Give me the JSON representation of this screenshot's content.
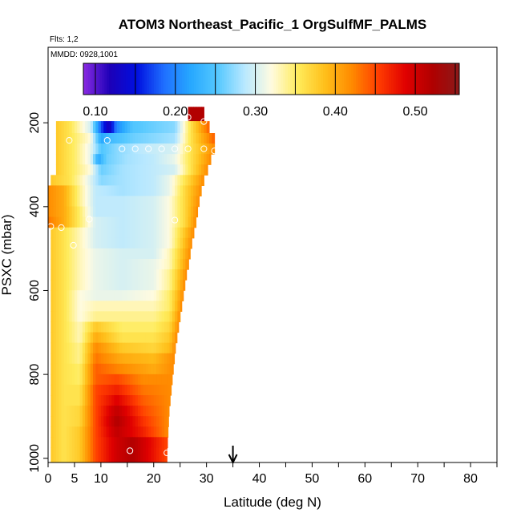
{
  "chart_data": {
    "type": "heatmap",
    "title": "ATOM3 Northeast_Pacific_1 OrgSulfMF_PALMS",
    "flights_label": "Flts: 1,2",
    "mmdd_label": "MMDD: 0928,1001",
    "xlabel": "Latitude (deg N)",
    "ylabel": "PSXC (mbar)",
    "xlim": [
      0,
      85
    ],
    "ylim": [
      1010,
      20
    ],
    "y_reversed": true,
    "x_ticks": [
      0,
      5,
      10,
      20,
      30,
      40,
      50,
      60,
      70,
      80
    ],
    "x_tick_labels": [
      "0",
      "5",
      "10",
      "20",
      "30",
      "40",
      "50",
      "60",
      "70",
      "80"
    ],
    "y_ticks": [
      200,
      400,
      600,
      800,
      1000
    ],
    "y_tick_labels": [
      "200",
      "400",
      "600",
      "800",
      "1000"
    ],
    "colorbar": {
      "range": [
        0.085,
        0.555
      ],
      "tick_values": [
        0.1,
        0.2,
        0.3,
        0.4,
        0.5
      ],
      "tick_labels": [
        "0.10",
        "0.20",
        "0.30",
        "0.40",
        "0.50"
      ],
      "colors": [
        "#8a2be2",
        "#1c00b8",
        "#0010e0",
        "#1f6fff",
        "#27a8ff",
        "#55c8ff",
        "#b8e8ff",
        "#fffbe0",
        "#ffeb5a",
        "#ffbf1a",
        "#ff8a00",
        "#ff3c00",
        "#e00000",
        "#b00000",
        "#8b1a1a"
      ]
    },
    "arrow_x": 35,
    "grid": {
      "levels": [
        180,
        212,
        237,
        262,
        287,
        312,
        337,
        362,
        387,
        412,
        437,
        462,
        487,
        512,
        537,
        562,
        587,
        612,
        637,
        662,
        687,
        712,
        737,
        762,
        787,
        812,
        837,
        862,
        887,
        912,
        937,
        962,
        987
      ],
      "lat_start": [
        26.5,
        1.5,
        1.5,
        1.5,
        1.5,
        1.5,
        0.5,
        0,
        0,
        0,
        0,
        0.5,
        0.5,
        0.5,
        0.5,
        0.5,
        0.5,
        0.5,
        0.5,
        0.5,
        0.5,
        0.5,
        0.5,
        0.5,
        0.5,
        0.5,
        0.5,
        0.5,
        0.5,
        0.5,
        0.5,
        0.5,
        0.5
      ],
      "lat_end": [
        29.5,
        30.5,
        31.5,
        31.5,
        30.8,
        30.2,
        29.5,
        29,
        28.6,
        28.3,
        28,
        27.6,
        27.2,
        26.9,
        26.6,
        26.2,
        25.9,
        25.6,
        25.3,
        25,
        24.7,
        24.4,
        24.1,
        23.9,
        23.7,
        23.5,
        23.3,
        23.1,
        22.9,
        22.8,
        22.7,
        22.6,
        22.5
      ],
      "profiles": [
        {
          "lat": [
            26.5,
            29.5
          ],
          "val": [
            0.52,
            0.52
          ]
        },
        {
          "lat": [
            1.5,
            4,
            8,
            10,
            11.5,
            13,
            16,
            20,
            24,
            27,
            30.5
          ],
          "val": [
            0.38,
            0.36,
            0.3,
            0.18,
            0.12,
            0.2,
            0.25,
            0.26,
            0.27,
            0.36,
            0.44
          ]
        },
        {
          "lat": [
            1.5,
            4,
            8,
            10,
            12,
            16,
            20,
            24,
            27,
            31.5
          ],
          "val": [
            0.38,
            0.36,
            0.32,
            0.22,
            0.24,
            0.26,
            0.27,
            0.28,
            0.36,
            0.44
          ]
        },
        {
          "lat": [
            1.5,
            5,
            8,
            10,
            13,
            18,
            24,
            27,
            31.5
          ],
          "val": [
            0.38,
            0.35,
            0.31,
            0.25,
            0.27,
            0.29,
            0.3,
            0.36,
            0.42
          ]
        },
        {
          "lat": [
            1.5,
            5,
            8,
            9.5,
            11,
            15,
            20,
            24,
            27,
            30.8
          ],
          "val": [
            0.38,
            0.35,
            0.31,
            0.22,
            0.26,
            0.28,
            0.29,
            0.31,
            0.36,
            0.42
          ]
        },
        {
          "lat": [
            1.5,
            5,
            8,
            10,
            14,
            20,
            24,
            27,
            30.2
          ],
          "val": [
            0.38,
            0.35,
            0.32,
            0.26,
            0.28,
            0.29,
            0.3,
            0.36,
            0.42
          ]
        },
        {
          "lat": [
            0.5,
            4,
            7,
            10,
            14,
            20,
            23,
            26,
            29.5
          ],
          "val": [
            0.38,
            0.36,
            0.32,
            0.27,
            0.28,
            0.29,
            0.31,
            0.36,
            0.42
          ]
        },
        {
          "lat": [
            0,
            3,
            6,
            9,
            14,
            20,
            23,
            26,
            29
          ],
          "val": [
            0.42,
            0.4,
            0.34,
            0.29,
            0.28,
            0.29,
            0.31,
            0.37,
            0.42
          ]
        },
        {
          "lat": [
            0,
            3,
            6,
            9,
            14,
            20,
            23,
            26,
            28.6
          ],
          "val": [
            0.42,
            0.4,
            0.34,
            0.29,
            0.29,
            0.3,
            0.32,
            0.37,
            0.42
          ]
        },
        {
          "lat": [
            0,
            3,
            6,
            9,
            14,
            20,
            23,
            26,
            28.3
          ],
          "val": [
            0.42,
            0.4,
            0.35,
            0.29,
            0.29,
            0.3,
            0.32,
            0.37,
            0.42
          ]
        },
        {
          "lat": [
            0,
            3,
            6,
            9,
            14,
            20,
            23,
            26,
            28
          ],
          "val": [
            0.43,
            0.4,
            0.35,
            0.3,
            0.29,
            0.3,
            0.32,
            0.37,
            0.42
          ]
        },
        {
          "lat": [
            0.5,
            3,
            6,
            9,
            14,
            20,
            23,
            27.6
          ],
          "val": [
            0.38,
            0.36,
            0.33,
            0.3,
            0.29,
            0.3,
            0.32,
            0.42
          ]
        },
        {
          "lat": [
            0.5,
            3,
            6,
            9,
            14,
            20,
            23,
            27.2
          ],
          "val": [
            0.38,
            0.36,
            0.33,
            0.3,
            0.29,
            0.3,
            0.32,
            0.42
          ]
        },
        {
          "lat": [
            0.5,
            3,
            6,
            9,
            14,
            20,
            23,
            26.9
          ],
          "val": [
            0.38,
            0.36,
            0.33,
            0.31,
            0.3,
            0.3,
            0.33,
            0.42
          ]
        },
        {
          "lat": [
            0.5,
            3,
            6,
            9,
            14,
            20,
            23,
            26.6
          ],
          "val": [
            0.38,
            0.36,
            0.33,
            0.31,
            0.3,
            0.31,
            0.33,
            0.42
          ]
        },
        {
          "lat": [
            0.5,
            3,
            6,
            9,
            14,
            20,
            23,
            26.2
          ],
          "val": [
            0.38,
            0.36,
            0.33,
            0.31,
            0.3,
            0.31,
            0.34,
            0.42
          ]
        },
        {
          "lat": [
            0.5,
            3,
            6,
            9,
            14,
            20,
            23,
            25.9
          ],
          "val": [
            0.38,
            0.36,
            0.33,
            0.31,
            0.3,
            0.31,
            0.34,
            0.42
          ]
        },
        {
          "lat": [
            0.5,
            3,
            6,
            9,
            14,
            20,
            23,
            25.6
          ],
          "val": [
            0.38,
            0.36,
            0.32,
            0.31,
            0.31,
            0.32,
            0.35,
            0.42
          ]
        },
        {
          "lat": [
            0.5,
            3,
            6,
            9,
            14,
            20,
            23,
            25.3
          ],
          "val": [
            0.38,
            0.36,
            0.32,
            0.33,
            0.33,
            0.33,
            0.35,
            0.42
          ]
        },
        {
          "lat": [
            0.5,
            3,
            6,
            9,
            14,
            20,
            23,
            25
          ],
          "val": [
            0.38,
            0.36,
            0.32,
            0.34,
            0.34,
            0.34,
            0.36,
            0.42
          ]
        },
        {
          "lat": [
            0.5,
            3,
            6,
            9,
            14,
            20,
            23,
            24.7
          ],
          "val": [
            0.38,
            0.36,
            0.33,
            0.38,
            0.35,
            0.35,
            0.37,
            0.42
          ]
        },
        {
          "lat": [
            0.5,
            3,
            6,
            9,
            14,
            20,
            23,
            24.4
          ],
          "val": [
            0.38,
            0.36,
            0.33,
            0.4,
            0.36,
            0.36,
            0.38,
            0.42
          ]
        },
        {
          "lat": [
            0.5,
            3,
            6,
            9,
            14,
            20,
            23,
            24.1
          ],
          "val": [
            0.38,
            0.36,
            0.34,
            0.42,
            0.38,
            0.37,
            0.39,
            0.42
          ]
        },
        {
          "lat": [
            0.5,
            3,
            6,
            9,
            14,
            20,
            23.9
          ],
          "val": [
            0.38,
            0.36,
            0.34,
            0.43,
            0.4,
            0.39,
            0.42
          ]
        },
        {
          "lat": [
            0.5,
            3,
            6,
            9,
            14,
            20,
            23.7
          ],
          "val": [
            0.38,
            0.36,
            0.35,
            0.44,
            0.42,
            0.4,
            0.42
          ]
        },
        {
          "lat": [
            0.5,
            3,
            6,
            9,
            13,
            18,
            23.5
          ],
          "val": [
            0.38,
            0.36,
            0.35,
            0.44,
            0.45,
            0.42,
            0.42
          ]
        },
        {
          "lat": [
            0.5,
            3,
            6,
            9,
            13,
            18,
            23.3
          ],
          "val": [
            0.38,
            0.36,
            0.36,
            0.45,
            0.47,
            0.43,
            0.42
          ]
        },
        {
          "lat": [
            0.5,
            3,
            6,
            9,
            13,
            18,
            23.1
          ],
          "val": [
            0.38,
            0.36,
            0.36,
            0.45,
            0.49,
            0.44,
            0.42
          ]
        },
        {
          "lat": [
            0.5,
            3,
            6,
            9,
            13,
            18,
            22.9
          ],
          "val": [
            0.38,
            0.36,
            0.37,
            0.45,
            0.51,
            0.45,
            0.42
          ]
        },
        {
          "lat": [
            0.5,
            3,
            6,
            9,
            13,
            18,
            22.8
          ],
          "val": [
            0.38,
            0.36,
            0.37,
            0.45,
            0.52,
            0.46,
            0.42
          ]
        },
        {
          "lat": [
            0.5,
            3,
            6,
            9,
            13,
            18,
            22.7
          ],
          "val": [
            0.38,
            0.36,
            0.38,
            0.45,
            0.51,
            0.47,
            0.42
          ]
        },
        {
          "lat": [
            0.5,
            3,
            6,
            9,
            13,
            16,
            22.6
          ],
          "val": [
            0.38,
            0.36,
            0.38,
            0.45,
            0.5,
            0.52,
            0.45
          ]
        },
        {
          "lat": [
            0.5,
            3,
            6,
            9,
            13,
            16,
            22.5
          ],
          "val": [
            0.38,
            0.36,
            0.38,
            0.45,
            0.5,
            0.52,
            0.45
          ]
        }
      ]
    },
    "markers": [
      {
        "lat": 26.5,
        "p": 187
      },
      {
        "lat": 29.5,
        "p": 197
      },
      {
        "lat": 11.2,
        "p": 242
      },
      {
        "lat": 14,
        "p": 262
      },
      {
        "lat": 16.5,
        "p": 262
      },
      {
        "lat": 19,
        "p": 262
      },
      {
        "lat": 21.5,
        "p": 262
      },
      {
        "lat": 24,
        "p": 262
      },
      {
        "lat": 26.5,
        "p": 262
      },
      {
        "lat": 29.5,
        "p": 262
      },
      {
        "lat": 31.5,
        "p": 267
      },
      {
        "lat": 4,
        "p": 242
      },
      {
        "lat": 0.5,
        "p": 447
      },
      {
        "lat": 2.5,
        "p": 450
      },
      {
        "lat": 4.8,
        "p": 492
      },
      {
        "lat": 7.8,
        "p": 430
      },
      {
        "lat": 24,
        "p": 432
      },
      {
        "lat": 15.5,
        "p": 982
      },
      {
        "lat": 22.5,
        "p": 987
      }
    ]
  }
}
